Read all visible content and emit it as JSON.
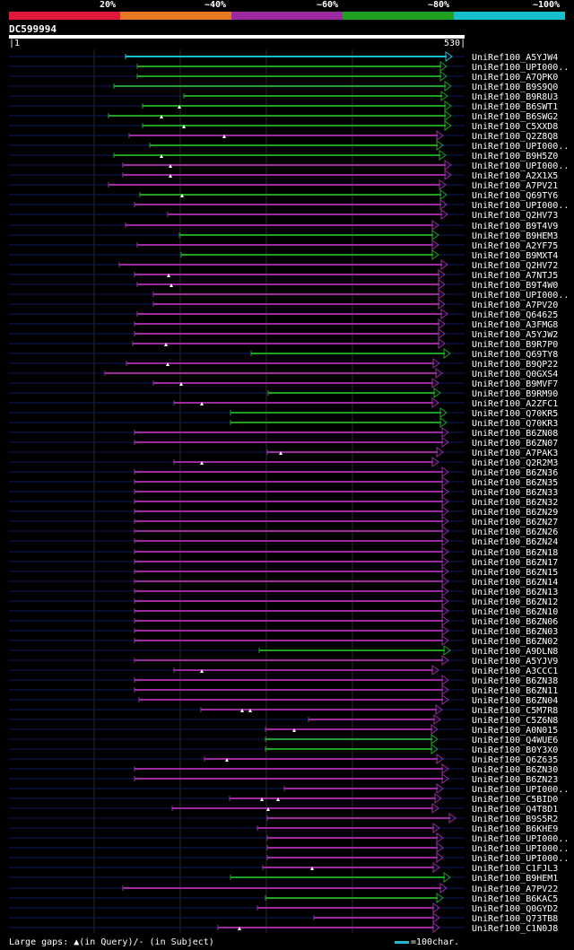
{
  "legend": [
    {
      "label": "20%",
      "color": "#e0183a"
    },
    {
      "label": "~40%",
      "color": "#e87722"
    },
    {
      "label": "~60%",
      "color": "#9b2aa0"
    },
    {
      "label": "~80%",
      "color": "#20a020"
    },
    {
      "label": "~100%",
      "color": "#17bfcc"
    }
  ],
  "query": {
    "id": "DC599994",
    "start": "1",
    "end": "530",
    "length": 530
  },
  "footer": {
    "gaps": "Large gaps: ▲(in Query)/- (in Subject)",
    "scale": "=100char."
  },
  "hits": [
    {
      "id": "UniRef100_A5YJW4",
      "c": "cyan",
      "s": 140,
      "e": 498,
      "g": []
    },
    {
      "id": "UniRef100_UPI000..",
      "c": "green",
      "s": 153,
      "e": 492,
      "g": []
    },
    {
      "id": "UniRef100_A7QPK0",
      "c": "green",
      "s": 153,
      "e": 492,
      "g": []
    },
    {
      "id": "UniRef100_B9S9Q0",
      "c": "green",
      "s": 127,
      "e": 497,
      "g": []
    },
    {
      "id": "UniRef100_B9R8U3",
      "c": "green",
      "s": 205,
      "e": 493,
      "g": []
    },
    {
      "id": "UniRef100_B6SWT1",
      "c": "green",
      "s": 159,
      "e": 497,
      "g": [
        200
      ]
    },
    {
      "id": "UniRef100_B6SWG2",
      "c": "green",
      "s": 121,
      "e": 497,
      "g": [
        180
      ]
    },
    {
      "id": "UniRef100_C5XXD8",
      "c": "green",
      "s": 159,
      "e": 497,
      "g": [
        205
      ]
    },
    {
      "id": "UniRef100_Q2Z8Q8",
      "c": "purple",
      "s": 144,
      "e": 488,
      "g": [
        250
      ]
    },
    {
      "id": "UniRef100_UPI000..",
      "c": "green",
      "s": 167,
      "e": 488,
      "g": []
    },
    {
      "id": "UniRef100_B9H5Z0",
      "c": "green",
      "s": 127,
      "e": 491,
      "g": [
        180
      ]
    },
    {
      "id": "UniRef100_UPI000..",
      "c": "purple",
      "s": 137,
      "e": 497,
      "g": [
        190
      ]
    },
    {
      "id": "UniRef100_A2X1X5",
      "c": "purple",
      "s": 137,
      "e": 497,
      "g": [
        190
      ]
    },
    {
      "id": "UniRef100_A7PV21",
      "c": "purple",
      "s": 121,
      "e": 491,
      "g": []
    },
    {
      "id": "UniRef100_Q69TY6",
      "c": "green",
      "s": 156,
      "e": 492,
      "g": [
        203
      ]
    },
    {
      "id": "UniRef100_UPI000..",
      "c": "purple",
      "s": 150,
      "e": 492,
      "g": []
    },
    {
      "id": "UniRef100_Q2HV73",
      "c": "purple",
      "s": 187,
      "e": 493,
      "g": []
    },
    {
      "id": "UniRef100_B9T4V9",
      "c": "purple",
      "s": 140,
      "e": 483,
      "g": []
    },
    {
      "id": "UniRef100_B9HEM3",
      "c": "green",
      "s": 200,
      "e": 483,
      "g": []
    },
    {
      "id": "UniRef100_A2YF75",
      "c": "purple",
      "s": 153,
      "e": 483,
      "g": []
    },
    {
      "id": "UniRef100_B9MXT4",
      "c": "green",
      "s": 202,
      "e": 483,
      "g": []
    },
    {
      "id": "UniRef100_Q2HV72",
      "c": "purple",
      "s": 133,
      "e": 493,
      "g": []
    },
    {
      "id": "UniRef100_A7NTJ5",
      "c": "purple",
      "s": 150,
      "e": 490,
      "g": [
        188
      ]
    },
    {
      "id": "UniRef100_B9T4W0",
      "c": "purple",
      "s": 153,
      "e": 490,
      "g": [
        191
      ]
    },
    {
      "id": "UniRef100_UPI000..",
      "c": "purple",
      "s": 171,
      "e": 490,
      "g": []
    },
    {
      "id": "UniRef100_A7PV20",
      "c": "purple",
      "s": 171,
      "e": 490,
      "g": []
    },
    {
      "id": "UniRef100_Q64625",
      "c": "purple",
      "s": 153,
      "e": 493,
      "g": []
    },
    {
      "id": "UniRef100_A3FMG8",
      "c": "purple",
      "s": 150,
      "e": 490,
      "g": []
    },
    {
      "id": "UniRef100_A5YJW2",
      "c": "purple",
      "s": 150,
      "e": 490,
      "g": []
    },
    {
      "id": "UniRef100_B9R7P0",
      "c": "purple",
      "s": 148,
      "e": 490,
      "g": [
        185
      ]
    },
    {
      "id": "UniRef100_Q69TY8",
      "c": "green",
      "s": 280,
      "e": 496,
      "g": []
    },
    {
      "id": "UniRef100_B9QP22",
      "c": "purple",
      "s": 141,
      "e": 484,
      "g": [
        187
      ]
    },
    {
      "id": "UniRef100_Q0GXS4",
      "c": "purple",
      "s": 117,
      "e": 487,
      "g": []
    },
    {
      "id": "UniRef100_B9MVF7",
      "c": "purple",
      "s": 171,
      "e": 483,
      "g": [
        202
      ]
    },
    {
      "id": "UniRef100_B9RM90",
      "c": "green",
      "s": 299,
      "e": 485,
      "g": []
    },
    {
      "id": "UniRef100_A2ZFC1",
      "c": "purple",
      "s": 194,
      "e": 483,
      "g": [
        225
      ]
    },
    {
      "id": "UniRef100_Q70KR5",
      "c": "green",
      "s": 257,
      "e": 492,
      "g": []
    },
    {
      "id": "UniRef100_Q70KR3",
      "c": "green",
      "s": 257,
      "e": 492,
      "g": []
    },
    {
      "id": "UniRef100_B6ZN08",
      "c": "purple",
      "s": 150,
      "e": 494,
      "g": []
    },
    {
      "id": "UniRef100_B6ZN07",
      "c": "purple",
      "s": 150,
      "e": 494,
      "g": []
    },
    {
      "id": "UniRef100_A7PAK3",
      "c": "purple",
      "s": 298,
      "e": 488,
      "g": [
        313
      ]
    },
    {
      "id": "UniRef100_Q2R2M3",
      "c": "purple",
      "s": 194,
      "e": 483,
      "g": [
        225
      ]
    },
    {
      "id": "UniRef100_B6ZN36",
      "c": "purple",
      "s": 150,
      "e": 494,
      "g": []
    },
    {
      "id": "UniRef100_B6ZN35",
      "c": "purple",
      "s": 150,
      "e": 494,
      "g": []
    },
    {
      "id": "UniRef100_B6ZN33",
      "c": "purple",
      "s": 150,
      "e": 494,
      "g": []
    },
    {
      "id": "UniRef100_B6ZN32",
      "c": "purple",
      "s": 150,
      "e": 494,
      "g": []
    },
    {
      "id": "UniRef100_B6ZN29",
      "c": "purple",
      "s": 150,
      "e": 494,
      "g": []
    },
    {
      "id": "UniRef100_B6ZN27",
      "c": "purple",
      "s": 150,
      "e": 494,
      "g": []
    },
    {
      "id": "UniRef100_B6ZN26",
      "c": "purple",
      "s": 150,
      "e": 494,
      "g": []
    },
    {
      "id": "UniRef100_B6ZN24",
      "c": "purple",
      "s": 150,
      "e": 494,
      "g": []
    },
    {
      "id": "UniRef100_B6ZN18",
      "c": "purple",
      "s": 150,
      "e": 494,
      "g": []
    },
    {
      "id": "UniRef100_B6ZN17",
      "c": "purple",
      "s": 150,
      "e": 494,
      "g": []
    },
    {
      "id": "UniRef100_B6ZN15",
      "c": "purple",
      "s": 150,
      "e": 494,
      "g": []
    },
    {
      "id": "UniRef100_B6ZN14",
      "c": "purple",
      "s": 150,
      "e": 494,
      "g": []
    },
    {
      "id": "UniRef100_B6ZN13",
      "c": "purple",
      "s": 150,
      "e": 494,
      "g": []
    },
    {
      "id": "UniRef100_B6ZN12",
      "c": "purple",
      "s": 150,
      "e": 494,
      "g": []
    },
    {
      "id": "UniRef100_B6ZN10",
      "c": "purple",
      "s": 150,
      "e": 494,
      "g": []
    },
    {
      "id": "UniRef100_B6ZN06",
      "c": "purple",
      "s": 150,
      "e": 494,
      "g": []
    },
    {
      "id": "UniRef100_B6ZN03",
      "c": "purple",
      "s": 150,
      "e": 494,
      "g": []
    },
    {
      "id": "UniRef100_B6ZN02",
      "c": "purple",
      "s": 150,
      "e": 494,
      "g": []
    },
    {
      "id": "UniRef100_A9DLN8",
      "c": "green",
      "s": 289,
      "e": 496,
      "g": []
    },
    {
      "id": "UniRef100_A5YJV9",
      "c": "purple",
      "s": 150,
      "e": 494,
      "g": []
    },
    {
      "id": "UniRef100_A3CCC1",
      "c": "purple",
      "s": 194,
      "e": 483,
      "g": [
        225
      ]
    },
    {
      "id": "UniRef100_B6ZN38",
      "c": "purple",
      "s": 150,
      "e": 494,
      "g": []
    },
    {
      "id": "UniRef100_B6ZN11",
      "c": "purple",
      "s": 150,
      "e": 494,
      "g": []
    },
    {
      "id": "UniRef100_B6ZN04",
      "c": "purple",
      "s": 155,
      "e": 494,
      "g": []
    },
    {
      "id": "UniRef100_C5M7R8",
      "c": "purple",
      "s": 224,
      "e": 487,
      "g": [
        270,
        279
      ]
    },
    {
      "id": "UniRef100_C5Z6N8",
      "c": "purple",
      "s": 344,
      "e": 485,
      "g": []
    },
    {
      "id": "UniRef100_A0N015",
      "c": "purple",
      "s": 296,
      "e": 482,
      "g": [
        328
      ]
    },
    {
      "id": "UniRef100_Q4WUE6",
      "c": "green",
      "s": 296,
      "e": 482,
      "g": []
    },
    {
      "id": "UniRef100_B0Y3X0",
      "c": "green",
      "s": 296,
      "e": 482,
      "g": []
    },
    {
      "id": "UniRef100_Q6Z635",
      "c": "purple",
      "s": 228,
      "e": 488,
      "g": [
        253
      ]
    },
    {
      "id": "UniRef100_B6ZN30",
      "c": "purple",
      "s": 150,
      "e": 494,
      "g": []
    },
    {
      "id": "UniRef100_B6ZN23",
      "c": "purple",
      "s": 150,
      "e": 494,
      "g": []
    },
    {
      "id": "UniRef100_UPI000..",
      "c": "purple",
      "s": 317,
      "e": 488,
      "g": []
    },
    {
      "id": "UniRef100_C5BID0",
      "c": "purple",
      "s": 256,
      "e": 486,
      "g": [
        292,
        310
      ]
    },
    {
      "id": "UniRef100_Q4T8D1",
      "c": "purple",
      "s": 192,
      "e": 483,
      "g": [
        299
      ]
    },
    {
      "id": "UniRef100_B9S5R2",
      "c": "purple",
      "s": 298,
      "e": 502,
      "g": []
    },
    {
      "id": "UniRef100_B6KHE9",
      "c": "purple",
      "s": 287,
      "e": 484,
      "g": []
    },
    {
      "id": "UniRef100_UPI000..",
      "c": "purple",
      "s": 298,
      "e": 488,
      "g": []
    },
    {
      "id": "UniRef100_UPI000..",
      "c": "purple",
      "s": 298,
      "e": 488,
      "g": []
    },
    {
      "id": "UniRef100_UPI000..",
      "c": "purple",
      "s": 298,
      "e": 488,
      "g": []
    },
    {
      "id": "UniRef100_C1FJL3",
      "c": "purple",
      "s": 293,
      "e": 484,
      "g": [
        348
      ]
    },
    {
      "id": "UniRef100_B9HEM1",
      "c": "green",
      "s": 257,
      "e": 496,
      "g": []
    },
    {
      "id": "UniRef100_A7PV22",
      "c": "purple",
      "s": 137,
      "e": 492,
      "g": []
    },
    {
      "id": "UniRef100_B6KAC5",
      "c": "green",
      "s": 296,
      "e": 488,
      "g": []
    },
    {
      "id": "UniRef100_Q0GYD2",
      "c": "purple",
      "s": 287,
      "e": 484,
      "g": []
    },
    {
      "id": "UniRef100_Q73TB8",
      "c": "purple",
      "s": 350,
      "e": 484,
      "g": []
    },
    {
      "id": "UniRef100_C1N0J8",
      "c": "purple",
      "s": 243,
      "e": 484,
      "g": [
        267
      ]
    }
  ]
}
